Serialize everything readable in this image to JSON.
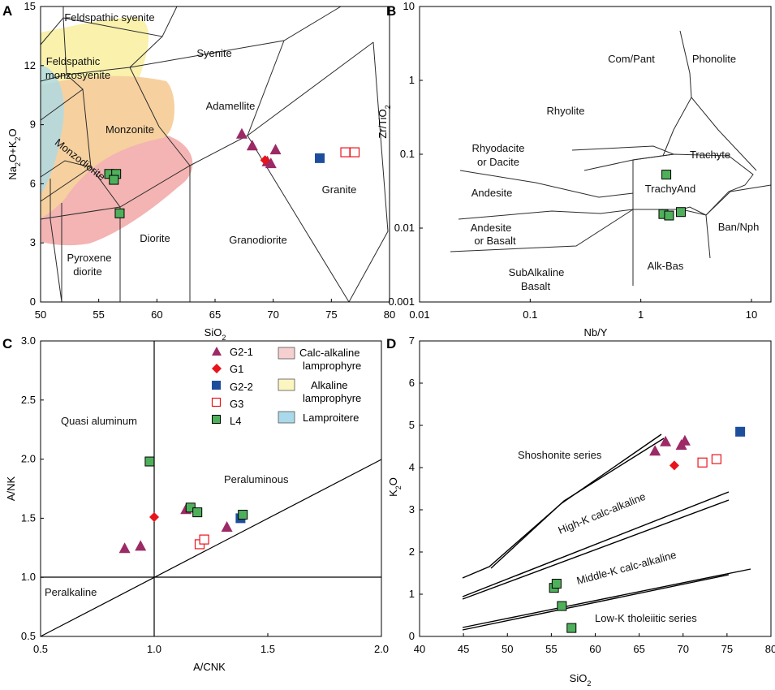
{
  "colors": {
    "g21": "#9b2a66",
    "g1": "#e8141c",
    "g22": "#1d4e9c",
    "g3": "#e8141c",
    "l4": "#4fb05c",
    "calc_alk": "#f2a8a6",
    "alkaline": "#f9ef9e",
    "lamproitere": "#9fd4e3",
    "monzonite_fill": "#f5c98f"
  },
  "chart_data": [
    {
      "panel": "A",
      "type": "scatter",
      "xlabel": "SiO2",
      "ylabel": "Na2O+K2O",
      "xlim": [
        50,
        80
      ],
      "ylim": [
        0,
        15
      ],
      "xticks": [
        "50",
        "55",
        "60",
        "65",
        "70",
        "75",
        "80"
      ],
      "yticks": [
        "0",
        "3",
        "6",
        "9",
        "12",
        "15"
      ],
      "fields": [
        "Feldspathic syenite",
        "Feldspathic",
        "monzosyenite",
        "Syenite",
        "Monzonite",
        "Adamellite",
        "Monzodiorite",
        "Granite",
        "Diorite",
        "Granodiorite",
        "Pyroxene",
        "diorite"
      ],
      "series": [
        {
          "name": "G2-1",
          "points": [
            [
              67.3,
              8.5
            ],
            [
              68.2,
              7.9
            ],
            [
              69.5,
              7.1
            ],
            [
              69.8,
              7.0
            ],
            [
              70.2,
              7.7
            ]
          ]
        },
        {
          "name": "G1",
          "points": [
            [
              69.3,
              7.2
            ]
          ]
        },
        {
          "name": "G2-2",
          "points": [
            [
              74.0,
              7.3
            ]
          ]
        },
        {
          "name": "G3",
          "points": [
            [
              76.2,
              7.6
            ],
            [
              77.0,
              7.6
            ]
          ]
        },
        {
          "name": "L4",
          "points": [
            [
              55.9,
              6.5
            ],
            [
              56.5,
              6.5
            ],
            [
              56.3,
              6.2
            ],
            [
              56.8,
              4.5
            ]
          ]
        }
      ]
    },
    {
      "panel": "B",
      "type": "scatter",
      "xlabel": "Nb/Y",
      "ylabel": "Zr/TiO2",
      "xscale": "log",
      "yscale": "log",
      "xlim": [
        0.01,
        15
      ],
      "ylim": [
        0.001,
        10
      ],
      "xticks": [
        "0.01",
        "0.1",
        "1",
        "10"
      ],
      "yticks": [
        "0.001",
        "0.01",
        "0.1",
        "1",
        "10"
      ],
      "fields": [
        "Com/Pant",
        "Phonolite",
        "Rhyolite",
        "Rhyodacite",
        "or Dacite",
        "Trachyte",
        "Andesite",
        "TrachyAnd",
        "Andesite",
        "or Basalt",
        "Ban/Nph",
        "SubAlkaline",
        "Basalt",
        "Alk-Bas"
      ],
      "series": [
        {
          "name": "L4",
          "points": [
            [
              1.7,
              0.053
            ],
            [
              1.6,
              0.0155
            ],
            [
              1.8,
              0.0148
            ],
            [
              2.3,
              0.0165
            ]
          ]
        }
      ]
    },
    {
      "panel": "C",
      "type": "scatter",
      "xlabel": "A/CNK",
      "ylabel": "A/NK",
      "xlim": [
        0.5,
        2.0
      ],
      "ylim": [
        0.5,
        3.0
      ],
      "xticks": [
        "0.5",
        "1.0",
        "1.5",
        "2.0"
      ],
      "yticks": [
        "0.5",
        "1.0",
        "1.5",
        "2.0",
        "2.5",
        "3.0"
      ],
      "fields": [
        "Quasi aluminum",
        "Peraluminous",
        "Peralkaline"
      ],
      "series": [
        {
          "name": "G2-1",
          "points": [
            [
              0.87,
              1.24
            ],
            [
              0.94,
              1.26
            ],
            [
              1.14,
              1.57
            ],
            [
              1.32,
              1.42
            ]
          ]
        },
        {
          "name": "G1",
          "points": [
            [
              1.0,
              1.51
            ]
          ]
        },
        {
          "name": "G2-2",
          "points": [
            [
              1.38,
              1.5
            ]
          ]
        },
        {
          "name": "G3",
          "points": [
            [
              1.2,
              1.28
            ],
            [
              1.22,
              1.32
            ]
          ]
        },
        {
          "name": "L4",
          "points": [
            [
              0.98,
              1.98
            ],
            [
              1.16,
              1.59
            ],
            [
              1.19,
              1.55
            ],
            [
              1.39,
              1.53
            ]
          ]
        }
      ],
      "legend": {
        "position": "top-right",
        "samples": [
          "G2-1",
          "G1",
          "G2-2",
          "G3",
          "L4"
        ],
        "fields": [
          "Calc-alkaline",
          "lamprophyre",
          "Alkaline",
          "lamprophyre",
          "Lamproitere"
        ]
      }
    },
    {
      "panel": "D",
      "type": "scatter",
      "xlabel": "SiO2",
      "ylabel": "K2O",
      "xlim": [
        40,
        80
      ],
      "ylim": [
        0,
        7
      ],
      "xticks": [
        "40",
        "45",
        "50",
        "55",
        "60",
        "65",
        "70",
        "75",
        "80"
      ],
      "yticks": [
        "0",
        "1",
        "2",
        "3",
        "4",
        "5",
        "6",
        "7"
      ],
      "fields": [
        "Shoshonite series",
        "High-K calc-alkaline",
        "Middle-K calc-alkaline",
        "Low-K tholeiitic series"
      ],
      "series": [
        {
          "name": "G2-1",
          "points": [
            [
              66.8,
              4.38
            ],
            [
              68.0,
              4.6
            ],
            [
              69.8,
              4.52
            ],
            [
              70.2,
              4.62
            ]
          ]
        },
        {
          "name": "G1",
          "points": [
            [
              69.0,
              4.05
            ]
          ]
        },
        {
          "name": "G2-2",
          "points": [
            [
              76.5,
              4.85
            ]
          ]
        },
        {
          "name": "G3",
          "points": [
            [
              72.2,
              4.12
            ],
            [
              73.8,
              4.2
            ]
          ]
        },
        {
          "name": "L4",
          "points": [
            [
              55.3,
              1.15
            ],
            [
              55.6,
              1.25
            ],
            [
              56.2,
              0.72
            ],
            [
              57.3,
              0.2
            ]
          ]
        }
      ]
    }
  ]
}
